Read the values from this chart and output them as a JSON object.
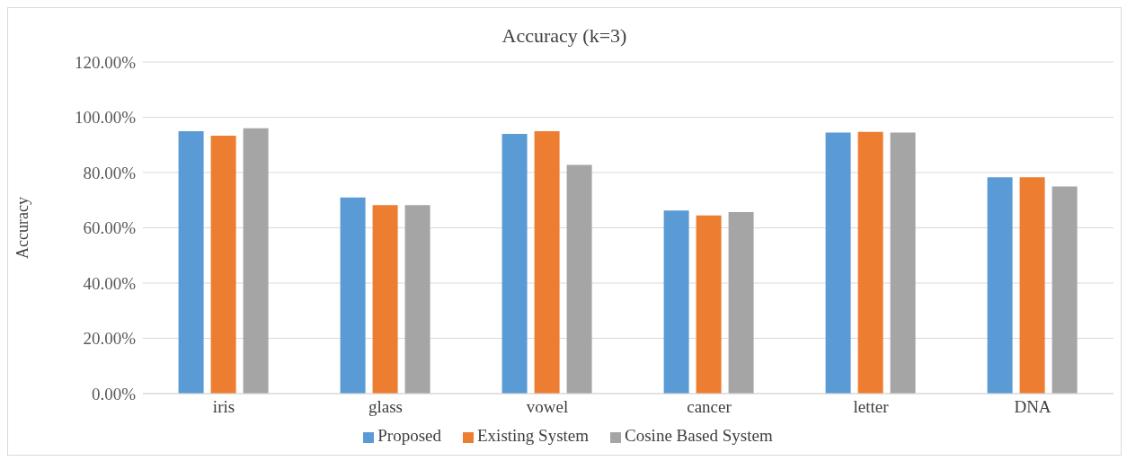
{
  "chart_data": {
    "type": "bar",
    "title": "Accuracy (k=3)",
    "ylabel": "Accuracy",
    "categories": [
      "iris",
      "glass",
      "vowel",
      "cancer",
      "letter",
      "DNA"
    ],
    "series": [
      {
        "name": "Proposed",
        "color": "#5b9bd5",
        "values": [
          95,
          71,
          94,
          66.3,
          94.5,
          78.3
        ]
      },
      {
        "name": "Existing System",
        "color": "#ed7d31",
        "values": [
          93.3,
          68.2,
          95,
          64.5,
          94.7,
          78.3
        ]
      },
      {
        "name": "Cosine Based System",
        "color": "#a5a5a5",
        "values": [
          96,
          68.2,
          82.8,
          65.7,
          94.5,
          75
        ]
      }
    ],
    "ylim": [
      0,
      120
    ],
    "yticks": [
      {
        "value": 0,
        "label": "0.00%"
      },
      {
        "value": 20,
        "label": "20.00%"
      },
      {
        "value": 40,
        "label": "40.00%"
      },
      {
        "value": 60,
        "label": "60.00%"
      },
      {
        "value": 80,
        "label": "80.00%"
      },
      {
        "value": 100,
        "label": "100.00%"
      },
      {
        "value": 120,
        "label": "120.00%"
      }
    ],
    "grid": "y",
    "legend": "bottom"
  }
}
